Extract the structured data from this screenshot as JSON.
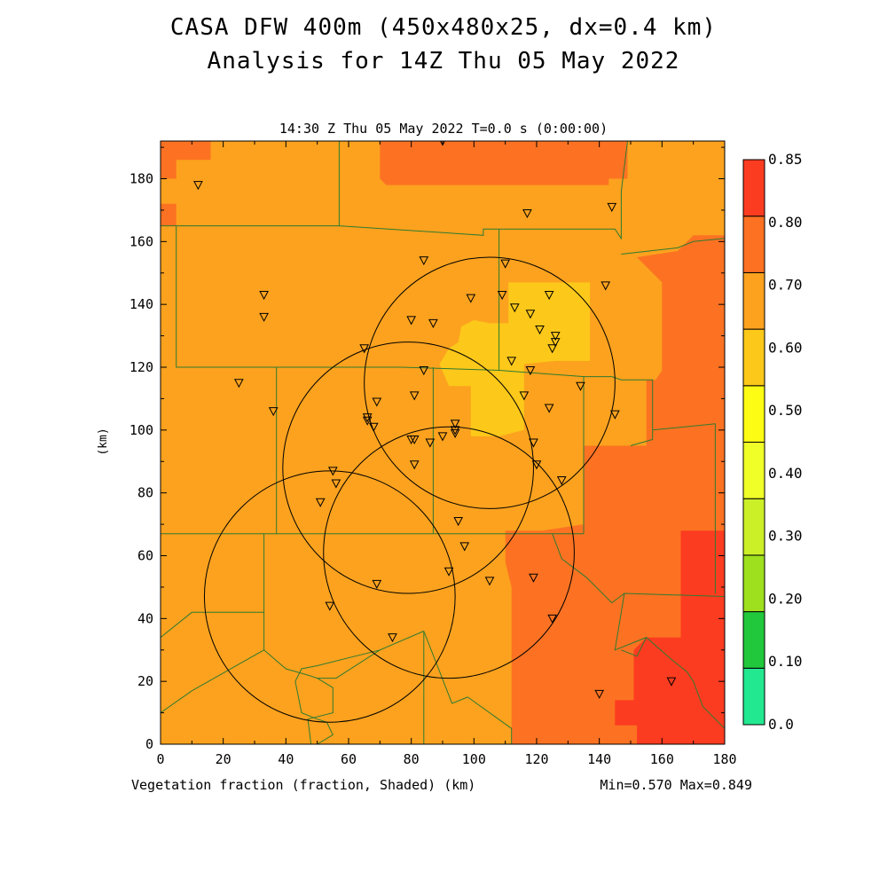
{
  "title": "CASA DFW 400m (450x480x25, dx=0.4 km)",
  "subtitle": "Analysis for 14Z Thu 05 May 2022",
  "time_label": "14:30 Z Thu 05 May 2022    T=0.0 s (0:00:00)",
  "footer_left": "Vegetation fraction (fraction, Shaded)  (km)",
  "footer_right": "Min=0.570 Max=0.849",
  "chart_data": {
    "type": "heatmap",
    "variable": "Vegetation fraction",
    "xlabel": "(km)",
    "ylabel": "(km)",
    "xlim": [
      0,
      180
    ],
    "ylim": [
      0,
      192
    ],
    "xticks": [
      0,
      20,
      40,
      60,
      80,
      100,
      120,
      140,
      160,
      180
    ],
    "yticks": [
      0,
      20,
      40,
      60,
      80,
      100,
      120,
      140,
      160,
      180
    ],
    "min": 0.57,
    "max": 0.849,
    "colorbar": {
      "levels": [
        "0.0",
        "0.10",
        "0.20",
        "0.30",
        "0.40",
        "0.50",
        "0.60",
        "0.70",
        "0.80",
        "0.85"
      ],
      "colors": [
        "#22e890",
        "#22c83c",
        "#9ee01e",
        "#ccf028",
        "#f0ff28",
        "#fcfc14",
        "#fcc81a",
        "#fca21e",
        "#fc7222",
        "#fc3c20"
      ]
    },
    "regions": [
      {
        "level": "0.70-0.80",
        "color": "#fc7222",
        "points": [
          [
            0,
            192
          ],
          [
            16,
            192
          ],
          [
            16,
            186
          ],
          [
            5,
            186
          ],
          [
            5,
            180
          ],
          [
            0,
            180
          ]
        ]
      },
      {
        "level": "0.70-0.80",
        "color": "#fc7222",
        "points": [
          [
            0,
            172
          ],
          [
            5,
            172
          ],
          [
            5,
            165
          ],
          [
            0,
            165
          ]
        ]
      },
      {
        "level": "0.70-0.80",
        "color": "#fc7222",
        "points": [
          [
            70,
            192
          ],
          [
            180,
            192
          ],
          [
            180,
            162
          ],
          [
            170,
            162
          ],
          [
            165,
            157
          ],
          [
            152,
            155
          ],
          [
            155,
            152
          ],
          [
            160,
            147
          ],
          [
            160,
            119
          ],
          [
            158,
            116
          ],
          [
            155,
            116
          ],
          [
            155,
            95
          ],
          [
            135,
            95
          ],
          [
            135,
            70
          ],
          [
            122,
            68
          ],
          [
            110,
            68
          ],
          [
            110,
            58
          ],
          [
            112,
            50
          ],
          [
            112,
            40
          ],
          [
            112,
            0
          ],
          [
            180,
            0
          ],
          [
            180,
            192
          ],
          [
            149,
            192
          ],
          [
            149,
            180
          ],
          [
            143,
            180
          ],
          [
            143,
            178
          ],
          [
            72,
            178
          ],
          [
            70,
            180
          ]
        ]
      },
      {
        "level": "0.80-0.85",
        "color": "#fc3c20",
        "points": [
          [
            166,
            68
          ],
          [
            180,
            68
          ],
          [
            180,
            0
          ],
          [
            152,
            0
          ],
          [
            152,
            6
          ],
          [
            145,
            6
          ],
          [
            145,
            14
          ],
          [
            151,
            14
          ],
          [
            151,
            30
          ],
          [
            155,
            34
          ],
          [
            166,
            34
          ]
        ]
      },
      {
        "level": "0.50-0.60",
        "color": "#fcc81a",
        "points": [
          [
            105,
            134
          ],
          [
            111,
            134
          ],
          [
            111,
            147
          ],
          [
            137,
            147
          ],
          [
            137,
            122
          ],
          [
            126,
            122
          ],
          [
            116,
            121
          ],
          [
            116,
            100
          ],
          [
            108,
            98
          ],
          [
            99,
            98
          ],
          [
            99,
            114
          ],
          [
            92,
            114
          ],
          [
            89,
            121
          ],
          [
            92,
            126
          ],
          [
            95,
            128
          ],
          [
            96,
            133
          ],
          [
            100,
            135
          ]
        ]
      }
    ],
    "stations": [
      [
        12,
        178
      ],
      [
        33,
        143
      ],
      [
        33,
        136
      ],
      [
        25,
        115
      ],
      [
        36,
        106
      ],
      [
        90,
        192
      ],
      [
        117,
        169
      ],
      [
        144,
        171
      ],
      [
        84,
        154
      ],
      [
        110,
        153
      ],
      [
        142,
        146
      ],
      [
        99,
        142
      ],
      [
        109,
        143
      ],
      [
        113,
        139
      ],
      [
        118,
        137
      ],
      [
        124,
        143
      ],
      [
        80,
        135
      ],
      [
        87,
        134
      ],
      [
        121,
        132
      ],
      [
        126,
        130
      ],
      [
        126,
        128
      ],
      [
        125,
        126
      ],
      [
        65,
        126
      ],
      [
        112,
        122
      ],
      [
        118,
        119
      ],
      [
        84,
        119
      ],
      [
        134,
        114
      ],
      [
        116,
        111
      ],
      [
        81,
        111
      ],
      [
        69,
        109
      ],
      [
        124,
        107
      ],
      [
        145,
        105
      ],
      [
        66,
        104
      ],
      [
        66,
        103
      ],
      [
        68,
        101
      ],
      [
        94,
        102
      ],
      [
        94,
        100
      ],
      [
        94,
        99
      ],
      [
        90,
        98
      ],
      [
        80,
        97
      ],
      [
        81,
        97
      ],
      [
        86,
        96
      ],
      [
        119,
        96
      ],
      [
        81,
        89
      ],
      [
        120,
        89
      ],
      [
        128,
        84
      ],
      [
        55,
        87
      ],
      [
        56,
        83
      ],
      [
        51,
        77
      ],
      [
        95,
        71
      ],
      [
        97,
        63
      ],
      [
        92,
        55
      ],
      [
        105,
        52
      ],
      [
        119,
        53
      ],
      [
        69,
        51
      ],
      [
        54,
        44
      ],
      [
        125,
        40
      ],
      [
        74,
        34
      ],
      [
        140,
        16
      ],
      [
        163,
        20
      ]
    ],
    "range_rings": [
      {
        "cx": 105,
        "cy": 115,
        "r": 40
      },
      {
        "cx": 79,
        "cy": 88,
        "r": 40
      },
      {
        "cx": 92,
        "cy": 61,
        "r": 40
      },
      {
        "cx": 54,
        "cy": 47,
        "r": 40
      }
    ],
    "boundaries": [
      [
        [
          0,
          192
        ],
        [
          0,
          0
        ]
      ],
      [
        [
          0,
          165
        ],
        [
          57,
          165
        ],
        [
          57,
          192
        ]
      ],
      [
        [
          57,
          165
        ],
        [
          103,
          162
        ],
        [
          103,
          164
        ],
        [
          145,
          164
        ],
        [
          147,
          161
        ],
        [
          147,
          176
        ],
        [
          149,
          192
        ]
      ],
      [
        [
          5,
          165
        ],
        [
          5,
          120
        ],
        [
          77,
          120
        ],
        [
          108,
          119
        ],
        [
          108,
          164
        ]
      ],
      [
        [
          108,
          119
        ],
        [
          135,
          117
        ],
        [
          135,
          67
        ]
      ],
      [
        [
          135,
          117
        ],
        [
          144,
          117
        ],
        [
          147,
          116
        ],
        [
          155,
          116
        ]
      ],
      [
        [
          155,
          116
        ],
        [
          157,
          116
        ],
        [
          157,
          112
        ],
        [
          157,
          97
        ],
        [
          150,
          95
        ]
      ],
      [
        [
          147,
          156
        ],
        [
          165,
          158
        ],
        [
          170,
          160
        ],
        [
          180,
          161
        ],
        [
          180,
          0
        ]
      ],
      [
        [
          157,
          100
        ],
        [
          177,
          102
        ],
        [
          177,
          48
        ]
      ],
      [
        [
          37,
          120
        ],
        [
          37,
          67
        ],
        [
          0,
          67
        ]
      ],
      [
        [
          37,
          67
        ],
        [
          135,
          67
        ]
      ],
      [
        [
          87,
          120
        ],
        [
          87,
          67
        ]
      ],
      [
        [
          33,
          67
        ],
        [
          33,
          42
        ],
        [
          10,
          42
        ],
        [
          0,
          34
        ]
      ],
      [
        [
          33,
          42
        ],
        [
          33,
          30
        ],
        [
          10,
          17
        ]
      ],
      [
        [
          10,
          17
        ],
        [
          0,
          10
        ]
      ],
      [
        [
          33,
          30
        ],
        [
          40,
          24
        ],
        [
          47,
          22
        ],
        [
          50,
          21
        ],
        [
          56,
          21
        ],
        [
          70,
          30
        ],
        [
          84,
          36
        ]
      ],
      [
        [
          84,
          36
        ],
        [
          84,
          0
        ]
      ],
      [
        [
          84,
          36
        ],
        [
          93,
          13
        ],
        [
          98,
          15
        ]
      ],
      [
        [
          98,
          15
        ],
        [
          112,
          5
        ],
        [
          112,
          0
        ]
      ],
      [
        [
          125,
          67
        ],
        [
          128,
          59
        ],
        [
          136,
          53
        ],
        [
          144,
          45
        ],
        [
          148,
          48
        ],
        [
          180,
          47
        ]
      ],
      [
        [
          148,
          48
        ],
        [
          145,
          30
        ],
        [
          155,
          34
        ],
        [
          163,
          27
        ],
        [
          168,
          23
        ],
        [
          170,
          20
        ],
        [
          173,
          12
        ],
        [
          180,
          5
        ]
      ],
      [
        [
          155,
          34
        ],
        [
          152,
          28
        ],
        [
          147,
          30
        ]
      ],
      [
        [
          50,
          21
        ],
        [
          55,
          18
        ],
        [
          55,
          10
        ],
        [
          47,
          8
        ],
        [
          48,
          0
        ]
      ],
      [
        [
          70,
          30
        ],
        [
          50,
          25
        ],
        [
          45,
          24
        ],
        [
          43,
          20
        ],
        [
          45,
          10
        ],
        [
          50,
          8
        ],
        [
          53,
          7
        ],
        [
          55,
          3
        ],
        [
          50,
          0
        ]
      ]
    ]
  }
}
